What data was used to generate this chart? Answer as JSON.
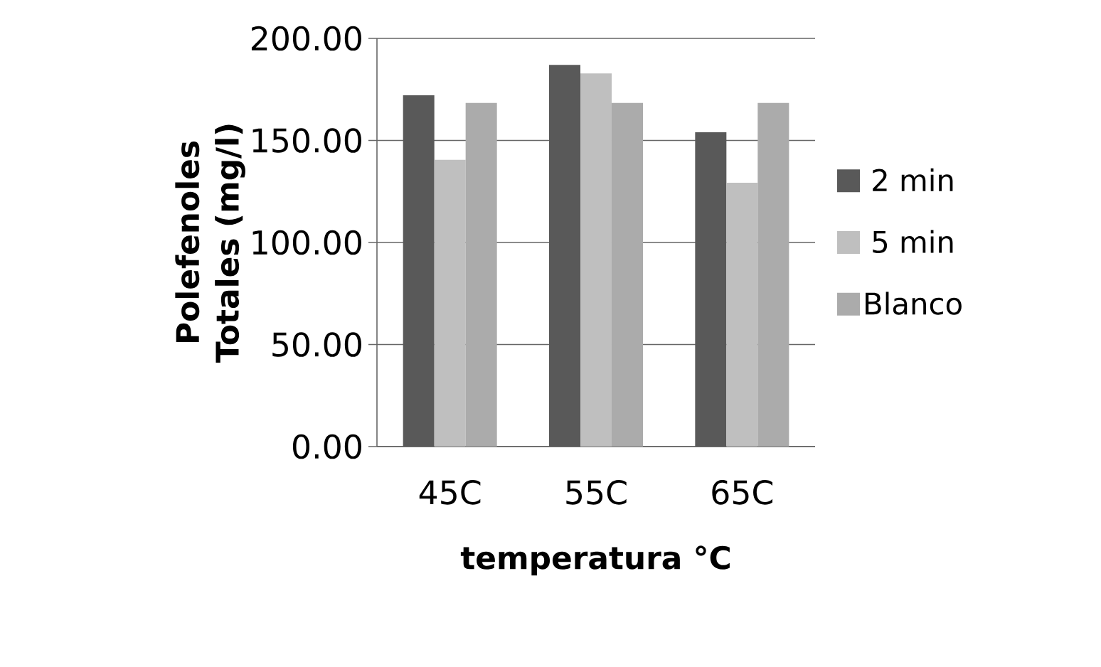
{
  "chart_data": {
    "type": "bar",
    "xlabel": "temperatura °C",
    "ylabel": "Polefenoles Totales (mg/l)",
    "categories": [
      "45C",
      "55C",
      "65C"
    ],
    "series": [
      {
        "name": "2 min",
        "color": "#595959",
        "values": [
          172.1,
          187.0,
          154.0
        ]
      },
      {
        "name": "5 min",
        "color": "#bfbfbf",
        "values": [
          140.5,
          182.8,
          129.3
        ]
      },
      {
        "name": "Blanco",
        "color": "#ababab",
        "values": [
          168.4,
          168.4,
          168.4
        ]
      }
    ],
    "ylim": [
      0,
      200
    ],
    "yticks": [
      {
        "value": 0,
        "label": "0.00"
      },
      {
        "value": 50,
        "label": "50.00"
      },
      {
        "value": 100,
        "label": "100.00"
      },
      {
        "value": 150,
        "label": "150.00"
      },
      {
        "value": 200,
        "label": "200.00"
      }
    ],
    "grid": "y",
    "legend": "right"
  }
}
